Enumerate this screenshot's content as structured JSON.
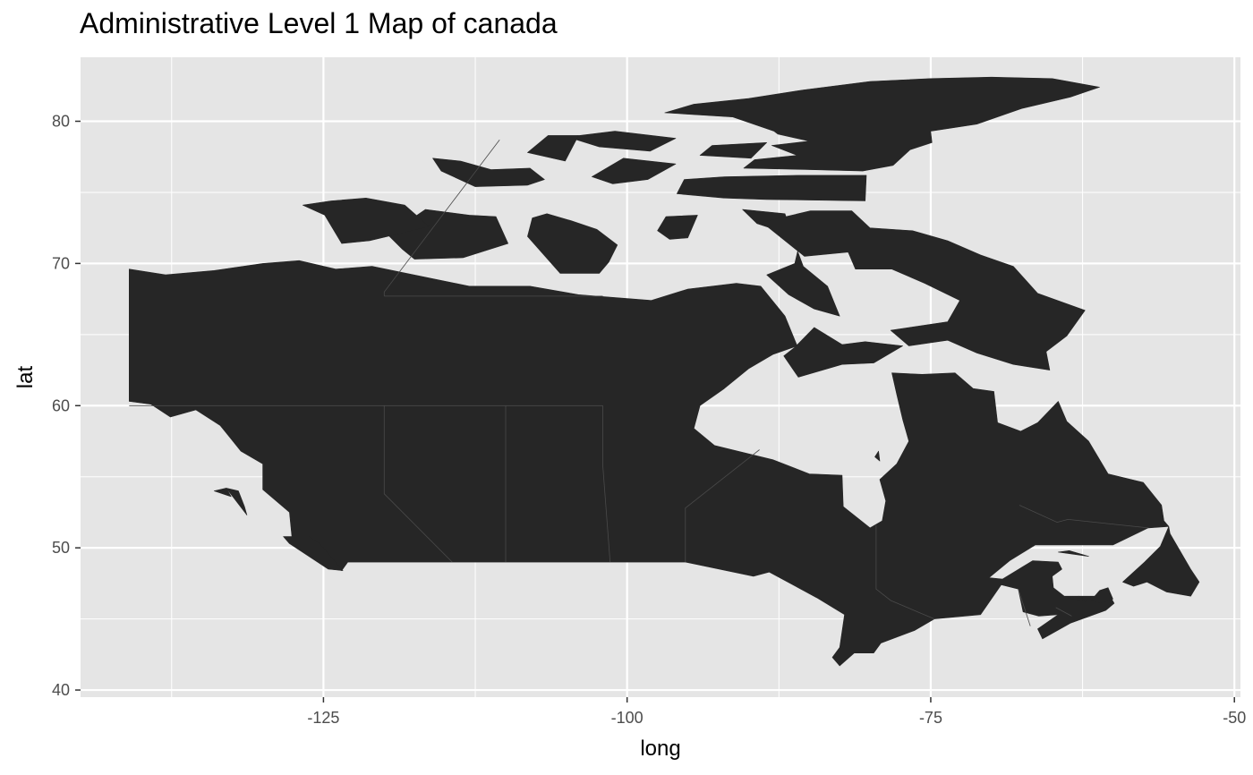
{
  "title": "Administrative Level 1 Map of canada",
  "colors": {
    "panel": "#e5e5e5",
    "grid": "#ffffff",
    "land": "#262626",
    "border": "#4a4a4a",
    "tick_text": "#4d4d4d"
  },
  "chart_data": {
    "type": "map",
    "title": "Administrative Level 1 Map of canada",
    "xlabel": "long",
    "ylabel": "lat",
    "xlim": [
      -145,
      -49.5
    ],
    "ylim": [
      39.5,
      84.5
    ],
    "x_breaks": [
      -125,
      -100,
      -75,
      -50
    ],
    "x_tick_labels": [
      "-125",
      "-100",
      "-75",
      "-50"
    ],
    "x_minor_breaks": [
      -137.5,
      -112.5,
      -87.5,
      -62.5
    ],
    "y_breaks": [
      40,
      50,
      60,
      70,
      80
    ],
    "y_tick_labels": [
      "40",
      "50",
      "60",
      "70",
      "80"
    ],
    "y_minor_breaks": [
      45,
      55,
      65,
      75
    ],
    "land": [
      [
        [
          -141,
          69.6
        ],
        [
          -138,
          69.2
        ],
        [
          -134,
          69.5
        ],
        [
          -130,
          70.0
        ],
        [
          -127,
          70.2
        ],
        [
          -124,
          69.6
        ],
        [
          -121,
          69.8
        ],
        [
          -117,
          69.1
        ],
        [
          -113,
          68.4
        ],
        [
          -108,
          68.4
        ],
        [
          -104,
          67.8
        ],
        [
          -98,
          67.4
        ],
        [
          -95,
          68.2
        ],
        [
          -91,
          68.6
        ],
        [
          -89,
          68.4
        ],
        [
          -87,
          66.3
        ],
        [
          -86,
          64.2
        ],
        [
          -88,
          63.6
        ],
        [
          -90,
          62.6
        ],
        [
          -92,
          61.2
        ],
        [
          -94,
          60.0
        ],
        [
          -94.5,
          58.4
        ],
        [
          -92.8,
          57.2
        ],
        [
          -88,
          56.2
        ],
        [
          -85,
          55.2
        ],
        [
          -82.3,
          55.1
        ],
        [
          -82.2,
          52.9
        ],
        [
          -80,
          51.4
        ],
        [
          -79,
          51.9
        ],
        [
          -78.7,
          53.3
        ],
        [
          -79.2,
          54.8
        ],
        [
          -77.8,
          55.9
        ],
        [
          -76.8,
          57.5
        ],
        [
          -77.3,
          59.0
        ],
        [
          -77.8,
          60.8
        ],
        [
          -78.2,
          62.3
        ],
        [
          -75.7,
          62.2
        ],
        [
          -73,
          62.3
        ],
        [
          -71.5,
          61.2
        ],
        [
          -69.8,
          61.0
        ],
        [
          -69.5,
          58.8
        ],
        [
          -67.6,
          58.2
        ],
        [
          -66.2,
          58.8
        ],
        [
          -64.5,
          60.3
        ],
        [
          -63.8,
          58.9
        ],
        [
          -62,
          57.5
        ],
        [
          -60.4,
          55.2
        ],
        [
          -57.5,
          54.6
        ],
        [
          -56,
          53.0
        ],
        [
          -55.8,
          51.9
        ],
        [
          -55.4,
          51.5
        ],
        [
          -56.1,
          50.1
        ],
        [
          -57.4,
          49.0
        ],
        [
          -59.2,
          47.6
        ],
        [
          -58.3,
          47.3
        ],
        [
          -57.2,
          47.6
        ],
        [
          -55.6,
          46.9
        ],
        [
          -53.6,
          46.6
        ],
        [
          -52.9,
          47.6
        ],
        [
          -53.6,
          48.5
        ],
        [
          -55.3,
          51.0
        ],
        [
          -55.4,
          51.5
        ],
        [
          -57.1,
          51.4
        ],
        [
          -60,
          50.2
        ],
        [
          -63.6,
          50.2
        ],
        [
          -66.4,
          50.2
        ],
        [
          -68.5,
          49.1
        ],
        [
          -70.2,
          47.9
        ],
        [
          -69.1,
          47.8
        ],
        [
          -66.6,
          49.1
        ],
        [
          -64.5,
          49.0
        ],
        [
          -64.2,
          48.5
        ],
        [
          -65,
          48.0
        ],
        [
          -64.9,
          47.2
        ],
        [
          -64,
          46.6
        ],
        [
          -61.5,
          46.6
        ],
        [
          -60.5,
          47.0
        ],
        [
          -59.9,
          46.1
        ],
        [
          -60.6,
          45.6
        ],
        [
          -63.5,
          44.7
        ],
        [
          -65.8,
          43.6
        ],
        [
          -66.2,
          44.3
        ],
        [
          -64.5,
          45.3
        ],
        [
          -66.1,
          45.2
        ],
        [
          -67.4,
          45.5
        ],
        [
          -67.8,
          47.1
        ],
        [
          -69.2,
          47.4
        ],
        [
          -70.9,
          45.3
        ],
        [
          -74.7,
          45.0
        ],
        [
          -76.3,
          44.2
        ],
        [
          -79.1,
          43.3
        ],
        [
          -79.7,
          42.6
        ],
        [
          -81.3,
          42.6
        ],
        [
          -82.5,
          41.7
        ],
        [
          -83.1,
          42.3
        ],
        [
          -82.5,
          43.0
        ],
        [
          -82.1,
          45.3
        ],
        [
          -84.4,
          46.5
        ],
        [
          -88.3,
          48.3
        ],
        [
          -89.6,
          48.0
        ],
        [
          -95.2,
          49.0
        ],
        [
          -123.0,
          49.0
        ],
        [
          -123.5,
          48.4
        ],
        [
          -124.8,
          48.7
        ],
        [
          -125.7,
          49.9
        ],
        [
          -127.6,
          50.8
        ],
        [
          -127.8,
          52.5
        ],
        [
          -130.0,
          54.1
        ],
        [
          -130.0,
          55.9
        ],
        [
          -131.8,
          56.8
        ],
        [
          -133.5,
          58.6
        ],
        [
          -135.5,
          59.7
        ],
        [
          -137.6,
          59.2
        ],
        [
          -139.2,
          60.1
        ],
        [
          -141.0,
          60.3
        ],
        [
          -141,
          69.6
        ]
      ],
      [
        [
          -110.8,
          73.3
        ],
        [
          -109.8,
          71.4
        ],
        [
          -113.5,
          70.4
        ],
        [
          -117.5,
          70.3
        ],
        [
          -118.5,
          71.0
        ],
        [
          -119.8,
          72.1
        ],
        [
          -118.3,
          72.8
        ],
        [
          -116.6,
          73.8
        ],
        [
          -113,
          73.4
        ]
      ],
      [
        [
          -124.9,
          73.4
        ],
        [
          -126.7,
          74.1
        ],
        [
          -124.4,
          74.4
        ],
        [
          -121.5,
          74.6
        ],
        [
          -118.3,
          74.1
        ],
        [
          -116.3,
          72.6
        ],
        [
          -121.2,
          71.6
        ],
        [
          -123.5,
          71.4
        ]
      ],
      [
        [
          -104.6,
          73.0
        ],
        [
          -106.6,
          73.5
        ],
        [
          -107.8,
          73.2
        ],
        [
          -108.2,
          71.9
        ],
        [
          -105.5,
          69.3
        ],
        [
          -102.3,
          69.3
        ],
        [
          -101.5,
          70.1
        ],
        [
          -100.8,
          71.3
        ],
        [
          -102.5,
          72.4
        ]
      ],
      [
        [
          -96.5,
          71.7
        ],
        [
          -97.5,
          72.3
        ],
        [
          -96.8,
          73.3
        ],
        [
          -94.2,
          73.4
        ],
        [
          -95,
          71.8
        ]
      ],
      [
        [
          -87.0,
          73.5
        ],
        [
          -90.5,
          73.8
        ],
        [
          -89.3,
          72.8
        ],
        [
          -85.7,
          71.8
        ],
        [
          -86.2,
          70.0
        ],
        [
          -88.5,
          69.2
        ],
        [
          -86.7,
          67.8
        ],
        [
          -84.6,
          66.8
        ],
        [
          -82.5,
          66.3
        ],
        [
          -83.5,
          68.4
        ],
        [
          -85.5,
          69.8
        ],
        [
          -86.5,
          72.1
        ]
      ],
      [
        [
          -80.0,
          72.5
        ],
        [
          -76.5,
          72.3
        ],
        [
          -73.6,
          71.6
        ],
        [
          -70.9,
          70.6
        ],
        [
          -68.2,
          69.8
        ],
        [
          -66.2,
          67.9
        ],
        [
          -62.3,
          66.7
        ],
        [
          -63.8,
          64.9
        ],
        [
          -65.5,
          63.8
        ],
        [
          -65.2,
          62.5
        ],
        [
          -68.2,
          62.9
        ],
        [
          -71.2,
          63.7
        ],
        [
          -73.6,
          64.6
        ],
        [
          -76.8,
          64.2
        ],
        [
          -78.3,
          65.3
        ],
        [
          -73.6,
          65.9
        ],
        [
          -72.6,
          67.4
        ],
        [
          -75.5,
          68.6
        ],
        [
          -78.2,
          69.6
        ],
        [
          -81.2,
          69.6
        ],
        [
          -81.8,
          70.8
        ],
        [
          -85.4,
          70.5
        ],
        [
          -88.9,
          72.9
        ],
        [
          -84.9,
          73.7
        ],
        [
          -81.5,
          73.7
        ]
      ],
      [
        [
          -77.3,
          64.2
        ],
        [
          -79.7,
          63.0
        ],
        [
          -82.3,
          62.9
        ],
        [
          -85.9,
          62.0
        ],
        [
          -87.1,
          63.5
        ],
        [
          -86.2,
          64.1
        ],
        [
          -84.6,
          65.5
        ],
        [
          -82.3,
          64.3
        ],
        [
          -80.4,
          64.5
        ]
      ],
      [
        [
          -92.0,
          76.1
        ],
        [
          -95.3,
          75.9
        ],
        [
          -95.9,
          74.9
        ],
        [
          -92.0,
          74.6
        ],
        [
          -88.5,
          74.5
        ],
        [
          -80.4,
          74.4
        ],
        [
          -80.3,
          76.2
        ],
        [
          -85.8,
          76.2
        ]
      ],
      [
        [
          -116.0,
          77.4
        ],
        [
          -115.3,
          76.5
        ],
        [
          -112.5,
          75.4
        ],
        [
          -108.2,
          75.5
        ],
        [
          -106.8,
          75.9
        ],
        [
          -108.0,
          76.7
        ],
        [
          -111.2,
          76.6
        ],
        [
          -113.7,
          77.2
        ]
      ],
      [
        [
          -102.9,
          76.1
        ],
        [
          -101.2,
          75.6
        ],
        [
          -98.3,
          75.9
        ],
        [
          -96.0,
          77.0
        ],
        [
          -100.3,
          77.4
        ]
      ],
      [
        [
          -88.5,
          78.5
        ],
        [
          -93.0,
          78.3
        ],
        [
          -94.0,
          77.6
        ],
        [
          -89.8,
          77.4
        ]
      ],
      [
        [
          -96.0,
          78.8
        ],
        [
          -98.1,
          77.9
        ],
        [
          -102.3,
          78.2
        ],
        [
          -104.9,
          78.9
        ],
        [
          -101.0,
          79.3
        ]
      ],
      [
        [
          -104.0,
          79.0
        ],
        [
          -106.5,
          79.0
        ],
        [
          -108.2,
          77.8
        ],
        [
          -105.1,
          77.2
        ]
      ],
      [
        [
          -87.9,
          79.3
        ],
        [
          -91.3,
          80.3
        ],
        [
          -96.9,
          80.6
        ],
        [
          -94.5,
          81.2
        ],
        [
          -90.0,
          81.6
        ],
        [
          -85.5,
          82.2
        ],
        [
          -80.0,
          82.8
        ],
        [
          -75.0,
          83.0
        ],
        [
          -70.0,
          83.1
        ],
        [
          -65.0,
          83.0
        ],
        [
          -61.1,
          82.4
        ],
        [
          -63.5,
          81.7
        ],
        [
          -67.5,
          80.9
        ],
        [
          -71.2,
          79.8
        ],
        [
          -75.0,
          79.3
        ],
        [
          -74.9,
          78.5
        ],
        [
          -76.7,
          78.0
        ],
        [
          -78.1,
          76.9
        ],
        [
          -80.6,
          76.5
        ],
        [
          -85.2,
          76.6
        ],
        [
          -90.4,
          76.7
        ],
        [
          -89.5,
          77.3
        ],
        [
          -86.0,
          77.6
        ],
        [
          -88.1,
          78.3
        ],
        [
          -85.0,
          78.6
        ],
        [
          -87.6,
          79.1
        ]
      ],
      [
        [
          -79.6,
          56.4
        ],
        [
          -79.2,
          56.1
        ],
        [
          -79.3,
          56.8
        ]
      ],
      [
        [
          -64.5,
          49.7
        ],
        [
          -62.0,
          49.4
        ],
        [
          -63.6,
          49.8
        ]
      ],
      [
        [
          -63.9,
          46.5
        ],
        [
          -62.1,
          46.2
        ],
        [
          -62.8,
          46.6
        ]
      ],
      [
        [
          -60.4,
          47.2
        ],
        [
          -60.0,
          46.4
        ],
        [
          -61.0,
          46.1
        ],
        [
          -61.8,
          46.3
        ],
        [
          -61.1,
          47.0
        ]
      ],
      [
        [
          -125.3,
          50.3
        ],
        [
          -123.4,
          48.4
        ],
        [
          -124.6,
          48.5
        ],
        [
          -127.8,
          50.3
        ],
        [
          -128.3,
          50.8
        ],
        [
          -126.2,
          50.8
        ]
      ],
      [
        [
          -132.0,
          54.0
        ],
        [
          -133.0,
          54.2
        ],
        [
          -131.3,
          52.3
        ],
        [
          -131.5,
          52.9
        ]
      ],
      [
        [
          -134.0,
          54.0
        ],
        [
          -132.6,
          53.6
        ],
        [
          -133.0,
          54.2
        ]
      ]
    ],
    "borders": [
      [
        [
          -141,
          60
        ],
        [
          -102,
          60
        ]
      ],
      [
        [
          -120,
          60
        ],
        [
          -120,
          53.8
        ],
        [
          -114.4,
          49
        ]
      ],
      [
        [
          -110,
          60
        ],
        [
          -110,
          49
        ]
      ],
      [
        [
          -102,
          60
        ],
        [
          -102,
          55.8
        ],
        [
          -101.4,
          49
        ]
      ],
      [
        [
          -95.2,
          49
        ],
        [
          -95.2,
          52.8
        ],
        [
          -89.1,
          56.9
        ]
      ],
      [
        [
          -79.5,
          51.6
        ],
        [
          -79.5,
          47.1
        ],
        [
          -78.3,
          46.3
        ],
        [
          -74.7,
          45.0
        ]
      ],
      [
        [
          -67.7,
          53.0
        ],
        [
          -64.6,
          51.8
        ],
        [
          -63.7,
          52.0
        ],
        [
          -57.1,
          51.4
        ]
      ],
      [
        [
          -66.8,
          44.5
        ],
        [
          -67.8,
          47.1
        ]
      ],
      [
        [
          -64.7,
          45.8
        ],
        [
          -63.4,
          45.2
        ]
      ],
      [
        [
          -110.5,
          78.7
        ],
        [
          -120,
          68.0
        ],
        [
          -120,
          67.7
        ]
      ],
      [
        [
          -102,
          67.7
        ],
        [
          -120,
          67.7
        ]
      ]
    ]
  }
}
